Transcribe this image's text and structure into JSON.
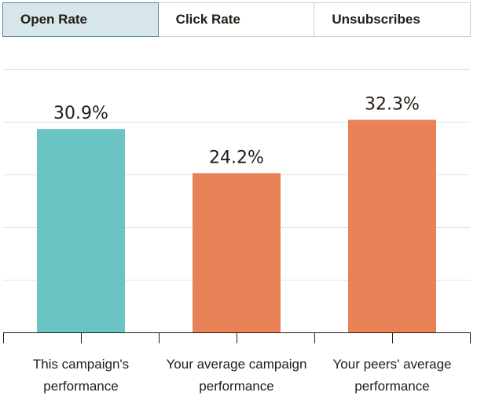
{
  "tabs": [
    {
      "label": "Open Rate",
      "active": true
    },
    {
      "label": "Click Rate",
      "active": false
    },
    {
      "label": "Unsubscribes",
      "active": false
    }
  ],
  "chart_data": {
    "type": "bar",
    "categories": [
      [
        "This campaign's",
        "performance"
      ],
      [
        "Your average campaign",
        "performance"
      ],
      [
        "Your peers' average",
        "performance"
      ]
    ],
    "values": [
      30.9,
      24.2,
      32.3
    ],
    "value_labels": [
      "30.9%",
      "24.2%",
      "32.3%"
    ],
    "colors": [
      "#6ac4c3",
      "#e98257",
      "#e98257"
    ],
    "ylim": [
      0,
      40
    ],
    "grid": true,
    "title": "",
    "xlabel": "",
    "ylabel": ""
  }
}
